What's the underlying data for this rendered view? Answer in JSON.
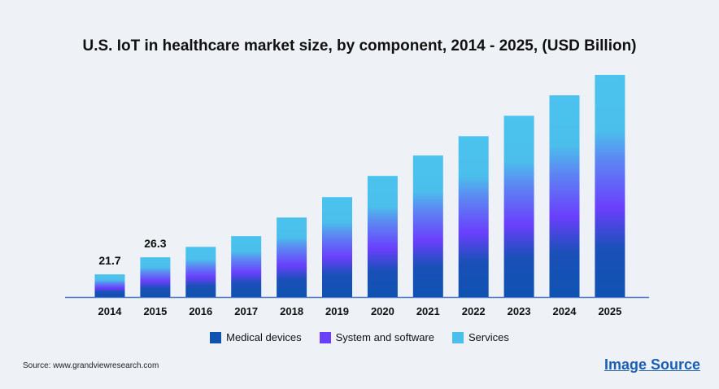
{
  "chart_data": {
    "type": "bar",
    "stacked": true,
    "title": "U.S. IoT in healthcare market size, by component, 2014 - 2025, (USD Billion)",
    "categories": [
      "2014",
      "2015",
      "2016",
      "2017",
      "2018",
      "2019",
      "2020",
      "2021",
      "2022",
      "2023",
      "2024",
      "2025"
    ],
    "totals": [
      21.7,
      26.3,
      29.1,
      32.0,
      37.0,
      42.5,
      48.2,
      53.7,
      58.9,
      64.4,
      69.9,
      75.4
    ],
    "data_labels": {
      "0": "21.7",
      "1": "26.3"
    },
    "series": [
      {
        "name": "Medical devices",
        "color": "#0f52b0"
      },
      {
        "name": "System and software",
        "color": "#6a3ffc"
      },
      {
        "name": "Services",
        "color": "#4bbfec"
      }
    ],
    "ylim": [
      15.6,
      78
    ],
    "grid": false,
    "legend_position": "bottom"
  },
  "footer": {
    "source": "Source: www.grandviewresearch.com",
    "image_source": "Image Source"
  }
}
